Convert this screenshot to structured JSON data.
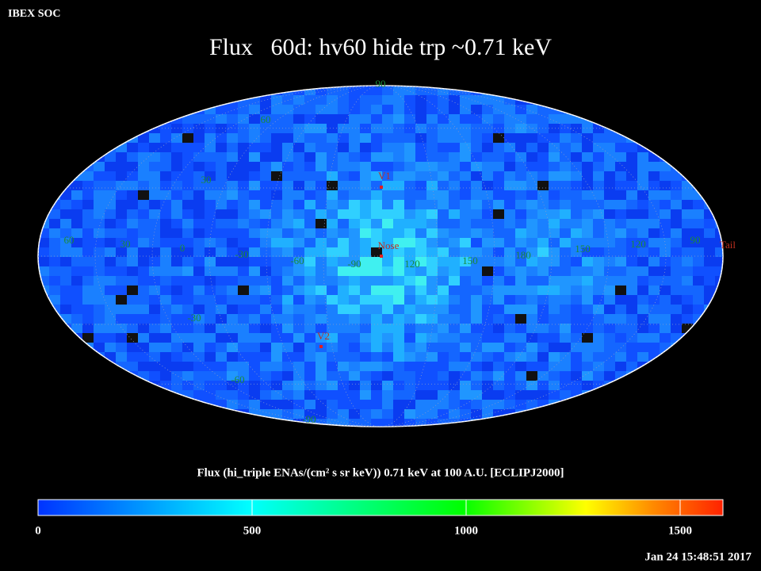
{
  "header": {
    "label": "IBEX SOC",
    "title": "Flux   60d: hv60 hide trp ~0.71 keV",
    "timestamp": "Jan 24 15:48:51 2017"
  },
  "map": {
    "grid_labels": [
      {
        "text": "90"
      },
      {
        "text": "60"
      },
      {
        "text": "30"
      },
      {
        "text": "60"
      },
      {
        "text": "30"
      },
      {
        "text": "0"
      },
      {
        "text": "-30"
      },
      {
        "text": "-60"
      },
      {
        "text": "-90"
      },
      {
        "text": "120"
      },
      {
        "text": "150"
      },
      {
        "text": "180"
      },
      {
        "text": "150"
      },
      {
        "text": "120"
      },
      {
        "text": "90"
      },
      {
        "text": "-30"
      },
      {
        "text": "-60"
      },
      {
        "text": "-90"
      }
    ],
    "markers": [
      {
        "text": "V1"
      },
      {
        "text": "Nose"
      },
      {
        "text": "V2"
      },
      {
        "text": "Tail"
      }
    ]
  },
  "colorbar": {
    "title": "Flux (hi_triple ENAs/(cm² s sr keV))  0.71 keV at 100 A.U. [ECLIPJ2000]",
    "lim": [
      0,
      1600
    ],
    "ticks": [
      0,
      500,
      1000,
      1500
    ]
  }
}
